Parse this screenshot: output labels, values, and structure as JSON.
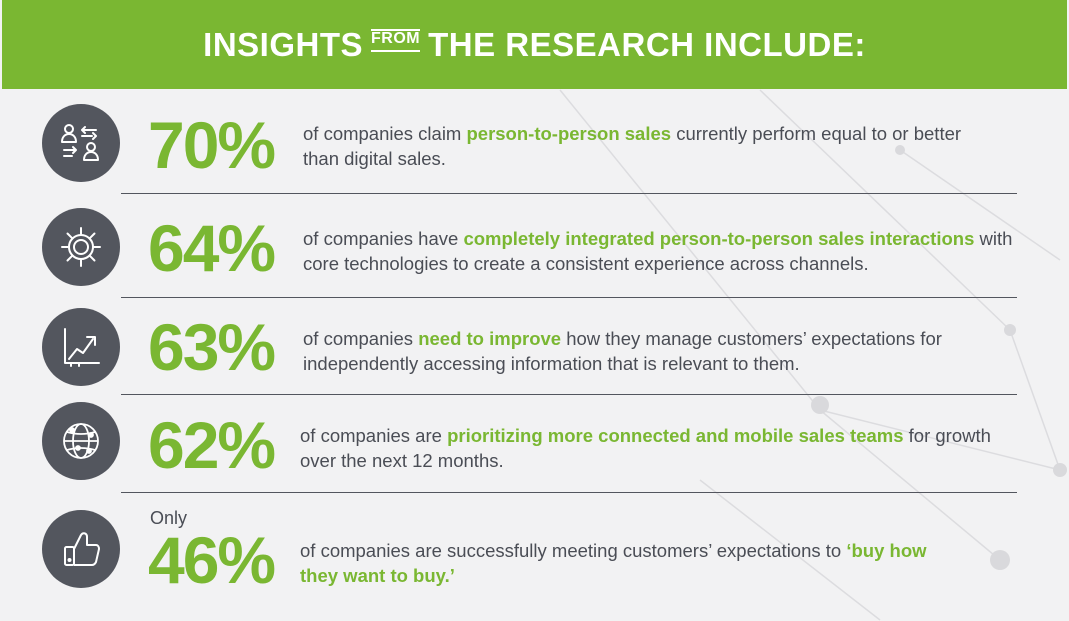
{
  "header": {
    "title_left": "INSIGHTS",
    "title_from": "FROM",
    "title_right": "THE RESEARCH INCLUDE:"
  },
  "colors": {
    "accent": "#7ab732",
    "circle": "#53565e",
    "text": "#4a4d55"
  },
  "items": [
    {
      "icon": "person-exchange-icon",
      "percent": "70%",
      "text_before": "of companies claim ",
      "highlight": "person-to-person sales",
      "text_after": " currently perform equal to or better than digital sales."
    },
    {
      "icon": "gear-icon",
      "percent": "64%",
      "text_before": "of companies have ",
      "highlight": "completely integrated person-to-person sales interactions",
      "text_after": " with core technologies to create a consistent experience across channels."
    },
    {
      "icon": "growth-chart-icon",
      "percent": "63%",
      "text_before": "of companies ",
      "highlight": "need to improve",
      "text_after": " how they manage customers’ expectations for independently accessing information that is relevant to them."
    },
    {
      "icon": "globe-network-icon",
      "percent": "62%",
      "text_before": "of companies are ",
      "highlight": "prioritizing more connected and mobile sales teams",
      "text_after": " for growth over the next 12 months."
    },
    {
      "icon": "thumbs-up-icon",
      "prefix": "Only",
      "percent": "46%",
      "text_before": "of companies are successfully meeting customers’ expectations to ",
      "highlight": "‘buy how they want to buy.’",
      "text_after": ""
    }
  ]
}
